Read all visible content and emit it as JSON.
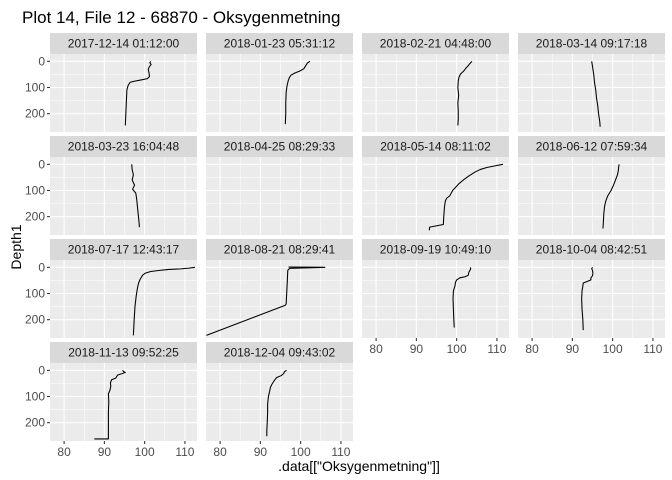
{
  "chart_data": {
    "type": "line",
    "title": "Plot 14, File 12 - 68870  -  Oksygenmetning",
    "xlabel": ".data[[\"Oksygenmetning\"]]",
    "ylabel": "Depth1",
    "x_ticks": [
      80,
      90,
      100,
      110
    ],
    "y_ticks": [
      0,
      100,
      200
    ],
    "xlim": [
      76.5,
      113
    ],
    "ylim_reversed": [
      -28,
      270
    ],
    "grid": true,
    "facets": [
      {
        "label": "2017-12-14 01:12:00",
        "points": [
          [
            101.5,
            0
          ],
          [
            101.3,
            6
          ],
          [
            101.6,
            12
          ],
          [
            101.2,
            20
          ],
          [
            100.9,
            30
          ],
          [
            101.1,
            45
          ],
          [
            101.2,
            58
          ],
          [
            100.7,
            66
          ],
          [
            98.8,
            72
          ],
          [
            97.4,
            76
          ],
          [
            96.4,
            80
          ],
          [
            95.9,
            92
          ],
          [
            95.6,
            108
          ],
          [
            95.5,
            140
          ],
          [
            95.4,
            175
          ],
          [
            95.3,
            210
          ],
          [
            95.2,
            245
          ]
        ]
      },
      {
        "label": "2018-01-23 05:31:12",
        "points": [
          [
            102.3,
            0
          ],
          [
            101.7,
            6
          ],
          [
            101.2,
            18
          ],
          [
            100.8,
            28
          ],
          [
            99.8,
            37
          ],
          [
            98.5,
            45
          ],
          [
            97.6,
            53
          ],
          [
            97.2,
            62
          ],
          [
            96.9,
            75
          ],
          [
            96.6,
            95
          ],
          [
            96.4,
            120
          ],
          [
            96.3,
            160
          ],
          [
            96.3,
            200
          ],
          [
            96.2,
            240
          ]
        ]
      },
      {
        "label": "2018-02-21 04:48:00",
        "points": [
          [
            103.8,
            0
          ],
          [
            103.5,
            5
          ],
          [
            103.2,
            10
          ],
          [
            102.8,
            18
          ],
          [
            102.2,
            28
          ],
          [
            101.7,
            38
          ],
          [
            101.0,
            48
          ],
          [
            100.6,
            60
          ],
          [
            100.4,
            75
          ],
          [
            100.3,
            100
          ],
          [
            100.5,
            130
          ],
          [
            100.3,
            160
          ],
          [
            100.4,
            190
          ],
          [
            100.4,
            220
          ],
          [
            100.3,
            245
          ]
        ]
      },
      {
        "label": "2018-03-14 09:17:18",
        "points": [
          [
            94.8,
            0
          ],
          [
            95.0,
            20
          ],
          [
            95.3,
            50
          ],
          [
            95.5,
            80
          ],
          [
            95.8,
            110
          ],
          [
            96.0,
            140
          ],
          [
            96.3,
            170
          ],
          [
            96.5,
            200
          ],
          [
            96.8,
            230
          ],
          [
            96.9,
            250
          ]
        ]
      },
      {
        "label": "2018-03-23 16:04:48",
        "points": [
          [
            96.8,
            0
          ],
          [
            96.9,
            20
          ],
          [
            97.2,
            40
          ],
          [
            96.9,
            60
          ],
          [
            97.5,
            80
          ],
          [
            97.0,
            95
          ],
          [
            97.8,
            110
          ],
          [
            98.0,
            130
          ],
          [
            98.2,
            160
          ],
          [
            98.4,
            190
          ],
          [
            98.6,
            220
          ],
          [
            98.7,
            240
          ]
        ]
      },
      {
        "label": "2018-04-25 08:29:33",
        "points": []
      },
      {
        "label": "2018-05-14 08:11:02",
        "points": [
          [
            111.5,
            0
          ],
          [
            109.5,
            6
          ],
          [
            107.5,
            12
          ],
          [
            105.8,
            20
          ],
          [
            104.5,
            30
          ],
          [
            103.0,
            45
          ],
          [
            101.8,
            58
          ],
          [
            100.5,
            75
          ],
          [
            99.0,
            100
          ],
          [
            98.3,
            120
          ],
          [
            97.5,
            130
          ],
          [
            97.2,
            140
          ],
          [
            97.0,
            160
          ],
          [
            96.8,
            200
          ],
          [
            96.7,
            230
          ],
          [
            93.3,
            240
          ],
          [
            93.2,
            252
          ]
        ]
      },
      {
        "label": "2018-06-12 07:59:34",
        "points": [
          [
            101.6,
            0
          ],
          [
            101.5,
            10
          ],
          [
            101.4,
            25
          ],
          [
            101.2,
            40
          ],
          [
            100.7,
            60
          ],
          [
            100.2,
            80
          ],
          [
            99.6,
            100
          ],
          [
            98.8,
            120
          ],
          [
            98.3,
            140
          ],
          [
            98.0,
            160
          ],
          [
            97.8,
            190
          ],
          [
            97.7,
            220
          ],
          [
            97.6,
            245
          ]
        ]
      },
      {
        "label": "2018-07-17 12:43:17",
        "points": [
          [
            112.5,
            0
          ],
          [
            111.0,
            3
          ],
          [
            109.0,
            6
          ],
          [
            106.0,
            8
          ],
          [
            103.5,
            12
          ],
          [
            101.5,
            16
          ],
          [
            100.2,
            22
          ],
          [
            99.5,
            30
          ],
          [
            98.9,
            45
          ],
          [
            98.5,
            60
          ],
          [
            98.2,
            80
          ],
          [
            97.9,
            110
          ],
          [
            97.6,
            150
          ],
          [
            97.4,
            200
          ],
          [
            97.2,
            260
          ]
        ]
      },
      {
        "label": "2018-08-21 08:29:41",
        "points": [
          [
            97.0,
            -1
          ],
          [
            106.0,
            0
          ],
          [
            97.3,
            4
          ],
          [
            97.0,
            8
          ],
          [
            96.8,
            12
          ],
          [
            96.7,
            50
          ],
          [
            96.4,
            140
          ],
          [
            96.2,
            145
          ],
          [
            76.6,
            260
          ]
        ]
      },
      {
        "label": "2018-09-19 10:49:10",
        "points": [
          [
            103.4,
            0
          ],
          [
            103.5,
            6
          ],
          [
            103.2,
            14
          ],
          [
            103.0,
            20
          ],
          [
            102.9,
            30
          ],
          [
            102.1,
            36
          ],
          [
            100.8,
            40
          ],
          [
            100.0,
            48
          ],
          [
            99.7,
            58
          ],
          [
            99.6,
            70
          ],
          [
            99.2,
            90
          ],
          [
            99.1,
            120
          ],
          [
            99.2,
            160
          ],
          [
            99.3,
            200
          ],
          [
            99.4,
            230
          ]
        ]
      },
      {
        "label": "2018-10-04 08:42:51",
        "points": [
          [
            95.0,
            0
          ],
          [
            94.8,
            5
          ],
          [
            95.0,
            12
          ],
          [
            95.1,
            22
          ],
          [
            95.0,
            32
          ],
          [
            94.6,
            40
          ],
          [
            94.6,
            48
          ],
          [
            93.5,
            55
          ],
          [
            92.7,
            60
          ],
          [
            92.6,
            72
          ],
          [
            92.4,
            90
          ],
          [
            92.3,
            120
          ],
          [
            92.4,
            160
          ],
          [
            92.6,
            200
          ],
          [
            92.7,
            240
          ]
        ]
      },
      {
        "label": "2018-11-13 09:52:25",
        "points": [
          [
            94.5,
            0
          ],
          [
            94.8,
            5
          ],
          [
            95.2,
            8
          ],
          [
            94.5,
            12
          ],
          [
            93.3,
            18
          ],
          [
            93.0,
            25
          ],
          [
            92.8,
            30
          ],
          [
            91.8,
            36
          ],
          [
            91.5,
            48
          ],
          [
            91.6,
            60
          ],
          [
            91.4,
            75
          ],
          [
            91.0,
            90
          ],
          [
            91.1,
            120
          ],
          [
            91.0,
            160
          ],
          [
            91.0,
            200
          ],
          [
            91.0,
            225
          ],
          [
            91.0,
            262
          ],
          [
            87.5,
            262
          ]
        ]
      },
      {
        "label": "2018-12-04 09:43:02",
        "points": [
          [
            96.5,
            0
          ],
          [
            96.0,
            5
          ],
          [
            95.8,
            12
          ],
          [
            95.2,
            20
          ],
          [
            94.0,
            28
          ],
          [
            93.5,
            38
          ],
          [
            93.2,
            45
          ],
          [
            92.8,
            55
          ],
          [
            92.5,
            65
          ],
          [
            92.3,
            80
          ],
          [
            92.0,
            100
          ],
          [
            91.8,
            130
          ],
          [
            91.8,
            160
          ],
          [
            91.7,
            200
          ],
          [
            91.6,
            230
          ],
          [
            91.6,
            252
          ]
        ]
      }
    ]
  }
}
